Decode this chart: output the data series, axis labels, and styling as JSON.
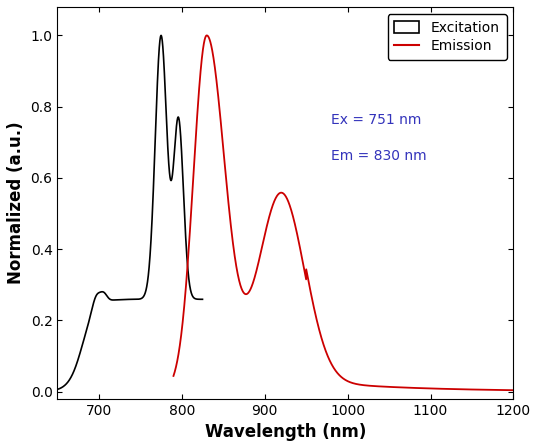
{
  "title": "",
  "xlabel": "Wavelength (nm)",
  "ylabel": "Normalized (a.u.)",
  "xlim": [
    650,
    1200
  ],
  "ylim": [
    -0.02,
    1.08
  ],
  "xticks": [
    700,
    800,
    900,
    1000,
    1100,
    1200
  ],
  "yticks": [
    0.0,
    0.2,
    0.4,
    0.6,
    0.8,
    1.0
  ],
  "annotation_ex": "Ex = 751 nm",
  "annotation_em": "Em = 830 nm",
  "legend_excitation": "Excitation",
  "legend_emission": "Emission",
  "excitation_color": "#000000",
  "emission_color": "#cc0000",
  "annotation_color": "#3333bb",
  "background_color": "#ffffff",
  "xlabel_fontsize": 12,
  "ylabel_fontsize": 12,
  "tick_fontsize": 10,
  "legend_fontsize": 10,
  "annotation_fontsize": 10
}
